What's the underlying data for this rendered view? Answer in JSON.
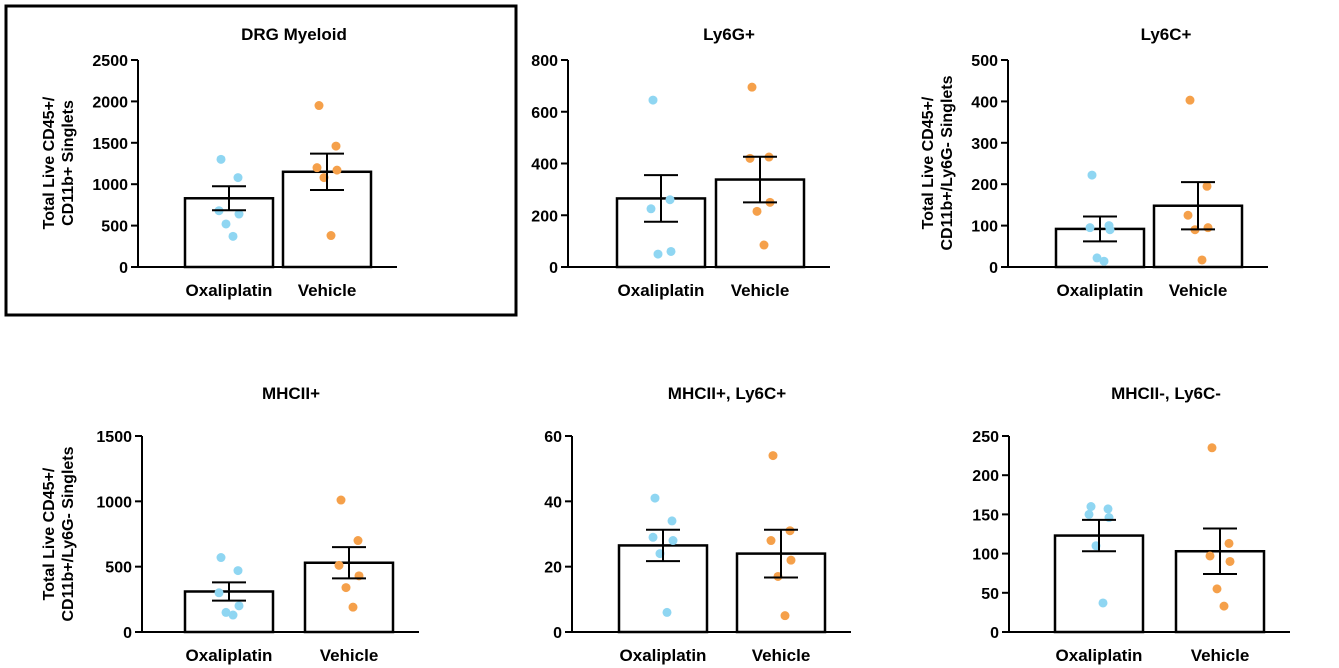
{
  "colors": {
    "oxaliplatin": "#8fd6f2",
    "vehicle": "#f5a04a",
    "axis": "#000000"
  },
  "chart_data": [
    {
      "type": "bar",
      "title": "DRG Myeloid",
      "ylabel_lines": [
        "Total Live CD45+/",
        "CD11b+ Singlets"
      ],
      "categories": [
        "Oxaliplatin",
        "Vehicle"
      ],
      "ylim": [
        0,
        2500
      ],
      "yticks": [
        "0",
        "500",
        "1000",
        "1500",
        "2000",
        "2500"
      ],
      "means": [
        830,
        1150
      ],
      "sem": [
        145,
        220
      ],
      "points": [
        [
          1300,
          1080,
          680,
          640,
          520,
          370
        ],
        [
          1950,
          1460,
          1200,
          1170,
          1080,
          380
        ]
      ],
      "highlighted": true
    },
    {
      "type": "bar",
      "title": "Ly6G+",
      "ylabel_lines": [],
      "categories": [
        "Oxaliplatin",
        "Vehicle"
      ],
      "ylim": [
        0,
        800
      ],
      "yticks": [
        "0",
        "200",
        "400",
        "600",
        "800"
      ],
      "means": [
        265,
        338
      ],
      "sem": [
        90,
        88
      ],
      "points": [
        [
          645,
          260,
          225,
          60,
          50
        ],
        [
          695,
          425,
          420,
          250,
          215,
          85
        ]
      ]
    },
    {
      "type": "bar",
      "title": "Ly6C+",
      "ylabel_lines": [
        "Total Live CD45+/",
        "CD11b+/Ly6G- Singlets"
      ],
      "categories": [
        "Oxaliplatin",
        "Vehicle"
      ],
      "ylim": [
        0,
        500
      ],
      "yticks": [
        "0",
        "100",
        "200",
        "300",
        "400",
        "500"
      ],
      "means": [
        92,
        148
      ],
      "sem": [
        30,
        57
      ],
      "points": [
        [
          222,
          100,
          95,
          90,
          22,
          14
        ],
        [
          403,
          195,
          125,
          95,
          90,
          17
        ]
      ]
    },
    {
      "type": "bar",
      "title": "MHCII+",
      "ylabel_lines": [
        "Total Live CD45+/",
        "CD11b+/Ly6G- Singlets"
      ],
      "categories": [
        "Oxaliplatin",
        "Vehicle"
      ],
      "ylim": [
        0,
        1500
      ],
      "yticks": [
        "0",
        "500",
        "1000",
        "1500"
      ],
      "means": [
        310,
        530
      ],
      "sem": [
        70,
        120
      ],
      "points": [
        [
          570,
          470,
          300,
          200,
          150,
          130
        ],
        [
          1010,
          700,
          510,
          430,
          340,
          190
        ]
      ]
    },
    {
      "type": "bar",
      "title": "MHCII+, Ly6C+",
      "ylabel_lines": [],
      "categories": [
        "Oxaliplatin",
        "Vehicle"
      ],
      "ylim": [
        0,
        60
      ],
      "yticks": [
        "0",
        "20",
        "40",
        "60"
      ],
      "means": [
        26.5,
        24
      ],
      "sem": [
        4.8,
        7.3
      ],
      "points": [
        [
          41,
          34,
          29,
          28,
          24,
          6
        ],
        [
          54,
          31,
          28,
          22,
          17,
          5
        ]
      ]
    },
    {
      "type": "bar",
      "title": "MHCII-, Ly6C-",
      "ylabel_lines": [],
      "categories": [
        "Oxaliplatin",
        "Vehicle"
      ],
      "ylim": [
        0,
        250
      ],
      "yticks": [
        "0",
        "50",
        "100",
        "150",
        "200",
        "250"
      ],
      "means": [
        123,
        103
      ],
      "sem": [
        20,
        29
      ],
      "points": [
        [
          160,
          157,
          150,
          146,
          110,
          37
        ],
        [
          235,
          113,
          97,
          90,
          55,
          33
        ]
      ]
    }
  ]
}
